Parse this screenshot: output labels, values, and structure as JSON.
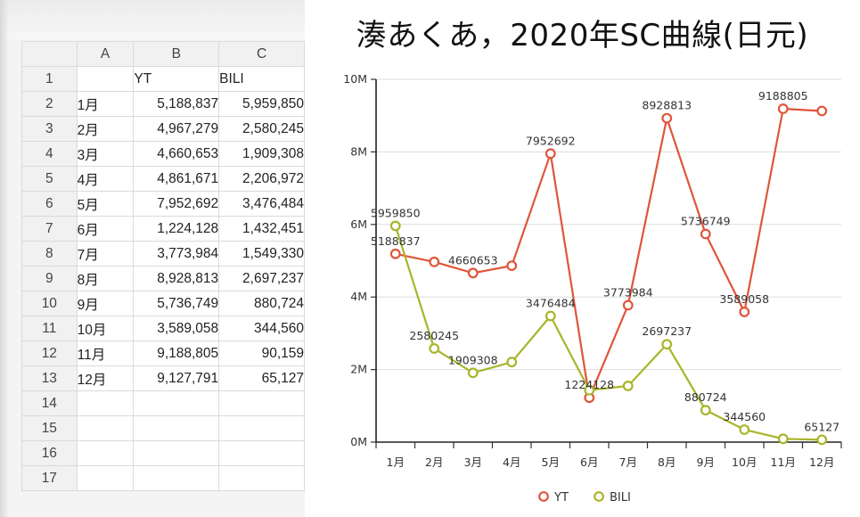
{
  "spreadsheet": {
    "column_headers": [
      "A",
      "B",
      "C"
    ],
    "row_numbers": [
      "1",
      "2",
      "3",
      "4",
      "5",
      "6",
      "7",
      "8",
      "9",
      "10",
      "11",
      "12",
      "13",
      "14",
      "15",
      "16",
      "17"
    ],
    "header_row": [
      "",
      "YT",
      "BILI"
    ],
    "rows": [
      [
        "1月",
        "5,188,837",
        "5,959,850"
      ],
      [
        "2月",
        "4,967,279",
        "2,580,245"
      ],
      [
        "3月",
        "4,660,653",
        "1,909,308"
      ],
      [
        "4月",
        "4,861,671",
        "2,206,972"
      ],
      [
        "5月",
        "7,952,692",
        "3,476,484"
      ],
      [
        "6月",
        "1,224,128",
        "1,432,451"
      ],
      [
        "7月",
        "3,773,984",
        "1,549,330"
      ],
      [
        "8月",
        "8,928,813",
        "2,697,237"
      ],
      [
        "9月",
        "5,736,749",
        "880,724"
      ],
      [
        "10月",
        "3,589,058",
        "344,560"
      ],
      [
        "11月",
        "9,188,805",
        "90,159"
      ],
      [
        "12月",
        "9,127,791",
        "65,127"
      ]
    ]
  },
  "chart_data": {
    "type": "line",
    "title": "湊あくあ，2020年SC曲線(日元)",
    "categories": [
      "1月",
      "2月",
      "3月",
      "4月",
      "5月",
      "6月",
      "7月",
      "8月",
      "9月",
      "10月",
      "11月",
      "12月"
    ],
    "ylim": [
      0,
      10000000
    ],
    "yticks": [
      0,
      2000000,
      4000000,
      6000000,
      8000000,
      10000000
    ],
    "ytick_labels": [
      "0M",
      "2M",
      "4M",
      "6M",
      "8M",
      "10M"
    ],
    "grid": true,
    "legend_position": "bottom",
    "series": [
      {
        "name": "YT",
        "color": "#e0553a",
        "values": [
          5188837,
          4967279,
          4660653,
          4861671,
          7952692,
          1224128,
          3773984,
          8928813,
          5736749,
          3589058,
          9188805,
          9127791
        ],
        "labels": [
          "5188837",
          "",
          "4660653",
          "",
          "7952692",
          "1224128",
          "3773984",
          "8928813",
          "5736749",
          "3589058",
          "9188805",
          ""
        ]
      },
      {
        "name": "BILI",
        "color": "#a8b52a",
        "values": [
          5959850,
          2580245,
          1909308,
          2206972,
          3476484,
          1432451,
          1549330,
          2697237,
          880724,
          344560,
          90159,
          65127
        ],
        "labels": [
          "5959850",
          "2580245",
          "1909308",
          "",
          "3476484",
          "",
          "",
          "2697237",
          "880724",
          "344560",
          "",
          "65127"
        ]
      }
    ]
  }
}
